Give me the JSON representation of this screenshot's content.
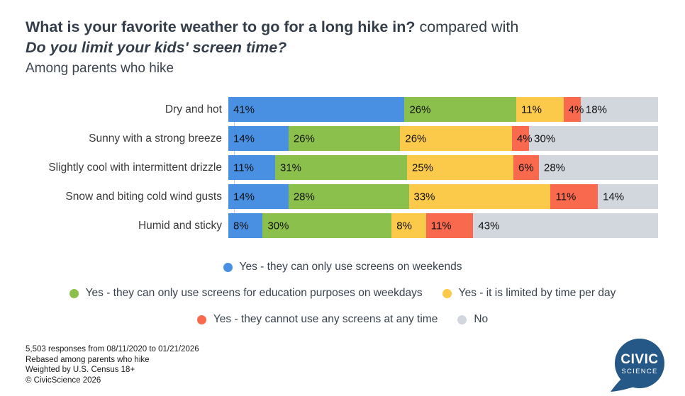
{
  "header": {
    "question_primary": "What is your favorite weather to go for a long hike in?",
    "compared_with": " compared with",
    "question_secondary": "Do you limit your kids' screen time?",
    "subtitle": "Among parents who hike"
  },
  "chart_data": {
    "type": "bar",
    "variant": "horizontal-stacked",
    "categories": [
      "Dry and hot",
      "Sunny with a strong breeze",
      "Slightly cool with intermittent drizzle",
      "Snow and biting cold wind gusts",
      "Humid and sticky"
    ],
    "series": [
      {
        "name": "Yes - they can only use screens on weekends",
        "color": "#4a90e2",
        "values": [
          41,
          14,
          11,
          14,
          8
        ]
      },
      {
        "name": "Yes - they can only use screens for education purposes on weekdays",
        "color": "#8cc04c",
        "values": [
          26,
          26,
          31,
          28,
          30
        ]
      },
      {
        "name": "Yes - it is limited by time per day",
        "color": "#fcca4a",
        "values": [
          11,
          26,
          25,
          33,
          8
        ]
      },
      {
        "name": "Yes - they cannot use any screens at any time",
        "color": "#f8694e",
        "values": [
          4,
          4,
          6,
          11,
          11
        ]
      },
      {
        "name": "No",
        "color": "#d2d6dd",
        "values": [
          18,
          30,
          28,
          14,
          43
        ]
      }
    ],
    "value_suffix": "%",
    "xlim": [
      0,
      100
    ],
    "grid": false,
    "legend_position": "bottom",
    "legend_rows": [
      [
        0
      ],
      [
        1,
        2
      ],
      [
        3,
        4
      ]
    ]
  },
  "footer": {
    "lines": [
      "5,503 responses from 08/11/2020 to 01/21/2026",
      "Rebased among parents who hike",
      "Weighted by U.S. Census 18+",
      "© CivicScience 2026"
    ]
  },
  "logo": {
    "line1": "CIVIC",
    "line2": "SCIENCE",
    "color": "#265887"
  }
}
